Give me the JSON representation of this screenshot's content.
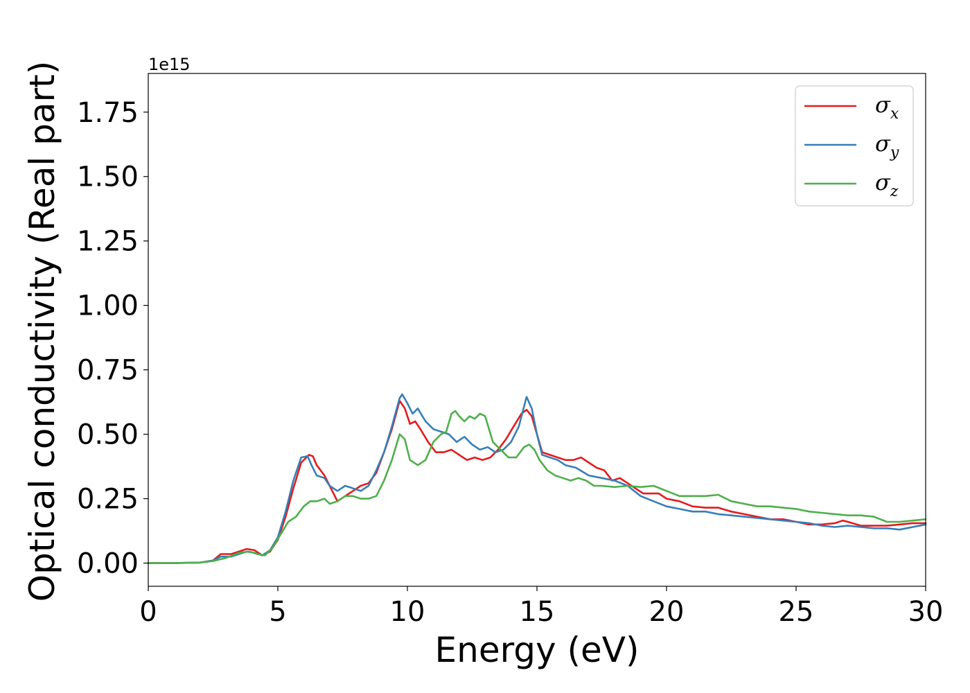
{
  "chart_data": {
    "type": "line",
    "xlabel": "Energy (eV)",
    "ylabel": "Optical conductivity (Real part)",
    "y_offset_label": "1e15",
    "xlim": [
      0,
      30
    ],
    "ylim": [
      -0.09,
      1.9
    ],
    "grid": false,
    "legend_position": "top-right",
    "x_ticks": [
      0,
      5,
      10,
      15,
      20,
      25,
      30
    ],
    "x_tick_labels": [
      "0",
      "5",
      "10",
      "15",
      "20",
      "25",
      "30"
    ],
    "y_ticks": [
      0.0,
      0.25,
      0.5,
      0.75,
      1.0,
      1.25,
      1.5,
      1.75
    ],
    "y_tick_labels": [
      "0.00",
      "0.25",
      "0.50",
      "0.75",
      "1.00",
      "1.25",
      "1.50",
      "1.75"
    ],
    "series": [
      {
        "name": "σx",
        "legend_symbol": "σ",
        "legend_sub": "x",
        "color": "#e41a1c",
        "x": [
          0,
          1,
          2,
          2.5,
          2.8,
          3.2,
          3.5,
          3.8,
          4.1,
          4.4,
          4.7,
          5.0,
          5.3,
          5.6,
          5.9,
          6.2,
          6.35,
          6.5,
          6.8,
          7.0,
          7.3,
          7.6,
          7.9,
          8.2,
          8.5,
          8.8,
          9.1,
          9.4,
          9.7,
          9.9,
          10.1,
          10.3,
          10.5,
          10.8,
          11.1,
          11.4,
          11.7,
          12.0,
          12.3,
          12.6,
          12.9,
          13.2,
          13.5,
          13.8,
          14.1,
          14.4,
          14.6,
          14.8,
          15.0,
          15.2,
          15.5,
          15.8,
          16.1,
          16.4,
          16.7,
          17.0,
          17.3,
          17.6,
          17.9,
          18.2,
          18.5,
          18.8,
          19.1,
          19.4,
          19.7,
          20.0,
          20.5,
          21.0,
          21.5,
          22.0,
          22.5,
          23.0,
          23.5,
          24.0,
          24.5,
          25.0,
          25.5,
          26.0,
          26.5,
          26.8,
          27.0,
          27.5,
          28.0,
          28.5,
          29.0,
          29.5,
          30.0
        ],
        "y": [
          0,
          0,
          0.002,
          0.01,
          0.035,
          0.035,
          0.045,
          0.055,
          0.05,
          0.03,
          0.045,
          0.09,
          0.18,
          0.29,
          0.39,
          0.42,
          0.415,
          0.38,
          0.34,
          0.3,
          0.24,
          0.26,
          0.28,
          0.3,
          0.31,
          0.35,
          0.43,
          0.52,
          0.63,
          0.6,
          0.54,
          0.55,
          0.52,
          0.47,
          0.43,
          0.43,
          0.44,
          0.42,
          0.4,
          0.41,
          0.4,
          0.41,
          0.44,
          0.48,
          0.53,
          0.58,
          0.595,
          0.57,
          0.5,
          0.43,
          0.42,
          0.41,
          0.4,
          0.4,
          0.41,
          0.39,
          0.37,
          0.36,
          0.32,
          0.33,
          0.31,
          0.29,
          0.27,
          0.27,
          0.27,
          0.25,
          0.24,
          0.22,
          0.215,
          0.215,
          0.2,
          0.19,
          0.18,
          0.17,
          0.17,
          0.16,
          0.15,
          0.15,
          0.155,
          0.165,
          0.16,
          0.145,
          0.145,
          0.145,
          0.15,
          0.155,
          0.155
        ]
      },
      {
        "name": "σy",
        "legend_symbol": "σ",
        "legend_sub": "y",
        "color": "#377eb8",
        "x": [
          0,
          1,
          2,
          2.5,
          2.8,
          3.2,
          3.5,
          3.8,
          4.1,
          4.4,
          4.7,
          5.0,
          5.3,
          5.6,
          5.9,
          6.15,
          6.3,
          6.5,
          6.8,
          7.0,
          7.3,
          7.6,
          7.9,
          8.2,
          8.5,
          8.8,
          9.1,
          9.4,
          9.7,
          9.8,
          10.0,
          10.2,
          10.4,
          10.7,
          11.0,
          11.3,
          11.6,
          11.9,
          12.2,
          12.5,
          12.8,
          13.1,
          13.4,
          13.7,
          14.0,
          14.3,
          14.6,
          14.8,
          15.0,
          15.2,
          15.5,
          15.8,
          16.1,
          16.5,
          17.0,
          17.5,
          18.0,
          18.5,
          19.0,
          19.5,
          20.0,
          20.5,
          21.0,
          21.5,
          22.0,
          22.5,
          23.0,
          23.5,
          24.0,
          24.5,
          25.0,
          25.5,
          26.0,
          26.5,
          27.0,
          27.5,
          28.0,
          28.5,
          29.0,
          29.5,
          30.0
        ],
        "y": [
          0,
          0,
          0.002,
          0.01,
          0.025,
          0.025,
          0.035,
          0.045,
          0.04,
          0.03,
          0.05,
          0.1,
          0.2,
          0.32,
          0.41,
          0.415,
          0.38,
          0.34,
          0.33,
          0.3,
          0.28,
          0.3,
          0.29,
          0.28,
          0.3,
          0.36,
          0.43,
          0.53,
          0.64,
          0.655,
          0.62,
          0.58,
          0.6,
          0.55,
          0.52,
          0.51,
          0.5,
          0.47,
          0.49,
          0.46,
          0.44,
          0.45,
          0.43,
          0.44,
          0.47,
          0.53,
          0.645,
          0.6,
          0.5,
          0.42,
          0.41,
          0.4,
          0.38,
          0.37,
          0.34,
          0.33,
          0.32,
          0.3,
          0.26,
          0.24,
          0.22,
          0.21,
          0.2,
          0.2,
          0.19,
          0.185,
          0.18,
          0.175,
          0.17,
          0.165,
          0.16,
          0.155,
          0.145,
          0.14,
          0.145,
          0.14,
          0.135,
          0.135,
          0.13,
          0.14,
          0.15
        ]
      },
      {
        "name": "σz",
        "legend_symbol": "σ",
        "legend_sub": "z",
        "color": "#4daf4a",
        "x": [
          0,
          1,
          2,
          2.5,
          3.0,
          3.5,
          3.9,
          4.2,
          4.5,
          4.8,
          5.1,
          5.4,
          5.7,
          6.0,
          6.25,
          6.5,
          6.8,
          7.0,
          7.3,
          7.6,
          7.9,
          8.2,
          8.5,
          8.8,
          9.1,
          9.4,
          9.7,
          9.9,
          10.1,
          10.4,
          10.7,
          11.0,
          11.3,
          11.5,
          11.7,
          11.85,
          12.0,
          12.2,
          12.4,
          12.6,
          12.8,
          13.0,
          13.3,
          13.6,
          13.9,
          14.2,
          14.5,
          14.7,
          14.9,
          15.1,
          15.4,
          15.7,
          16.0,
          16.3,
          16.6,
          16.9,
          17.2,
          17.5,
          18.0,
          18.5,
          19.0,
          19.5,
          20.0,
          20.5,
          21.0,
          21.5,
          22.0,
          22.5,
          23.0,
          23.5,
          24.0,
          24.5,
          25.0,
          25.5,
          26.0,
          26.5,
          27.0,
          27.5,
          28.0,
          28.5,
          29.0,
          29.5,
          30.0
        ],
        "y": [
          0,
          0,
          0.002,
          0.008,
          0.02,
          0.04,
          0.045,
          0.035,
          0.03,
          0.06,
          0.11,
          0.16,
          0.18,
          0.22,
          0.24,
          0.24,
          0.25,
          0.23,
          0.24,
          0.26,
          0.26,
          0.25,
          0.25,
          0.26,
          0.32,
          0.4,
          0.5,
          0.48,
          0.4,
          0.38,
          0.4,
          0.47,
          0.5,
          0.51,
          0.58,
          0.59,
          0.57,
          0.55,
          0.57,
          0.56,
          0.58,
          0.57,
          0.47,
          0.44,
          0.41,
          0.41,
          0.45,
          0.46,
          0.44,
          0.4,
          0.36,
          0.34,
          0.33,
          0.32,
          0.33,
          0.32,
          0.3,
          0.3,
          0.295,
          0.3,
          0.295,
          0.3,
          0.28,
          0.26,
          0.26,
          0.26,
          0.265,
          0.24,
          0.23,
          0.22,
          0.22,
          0.215,
          0.21,
          0.2,
          0.195,
          0.19,
          0.185,
          0.185,
          0.18,
          0.16,
          0.16,
          0.165,
          0.17
        ]
      }
    ]
  }
}
